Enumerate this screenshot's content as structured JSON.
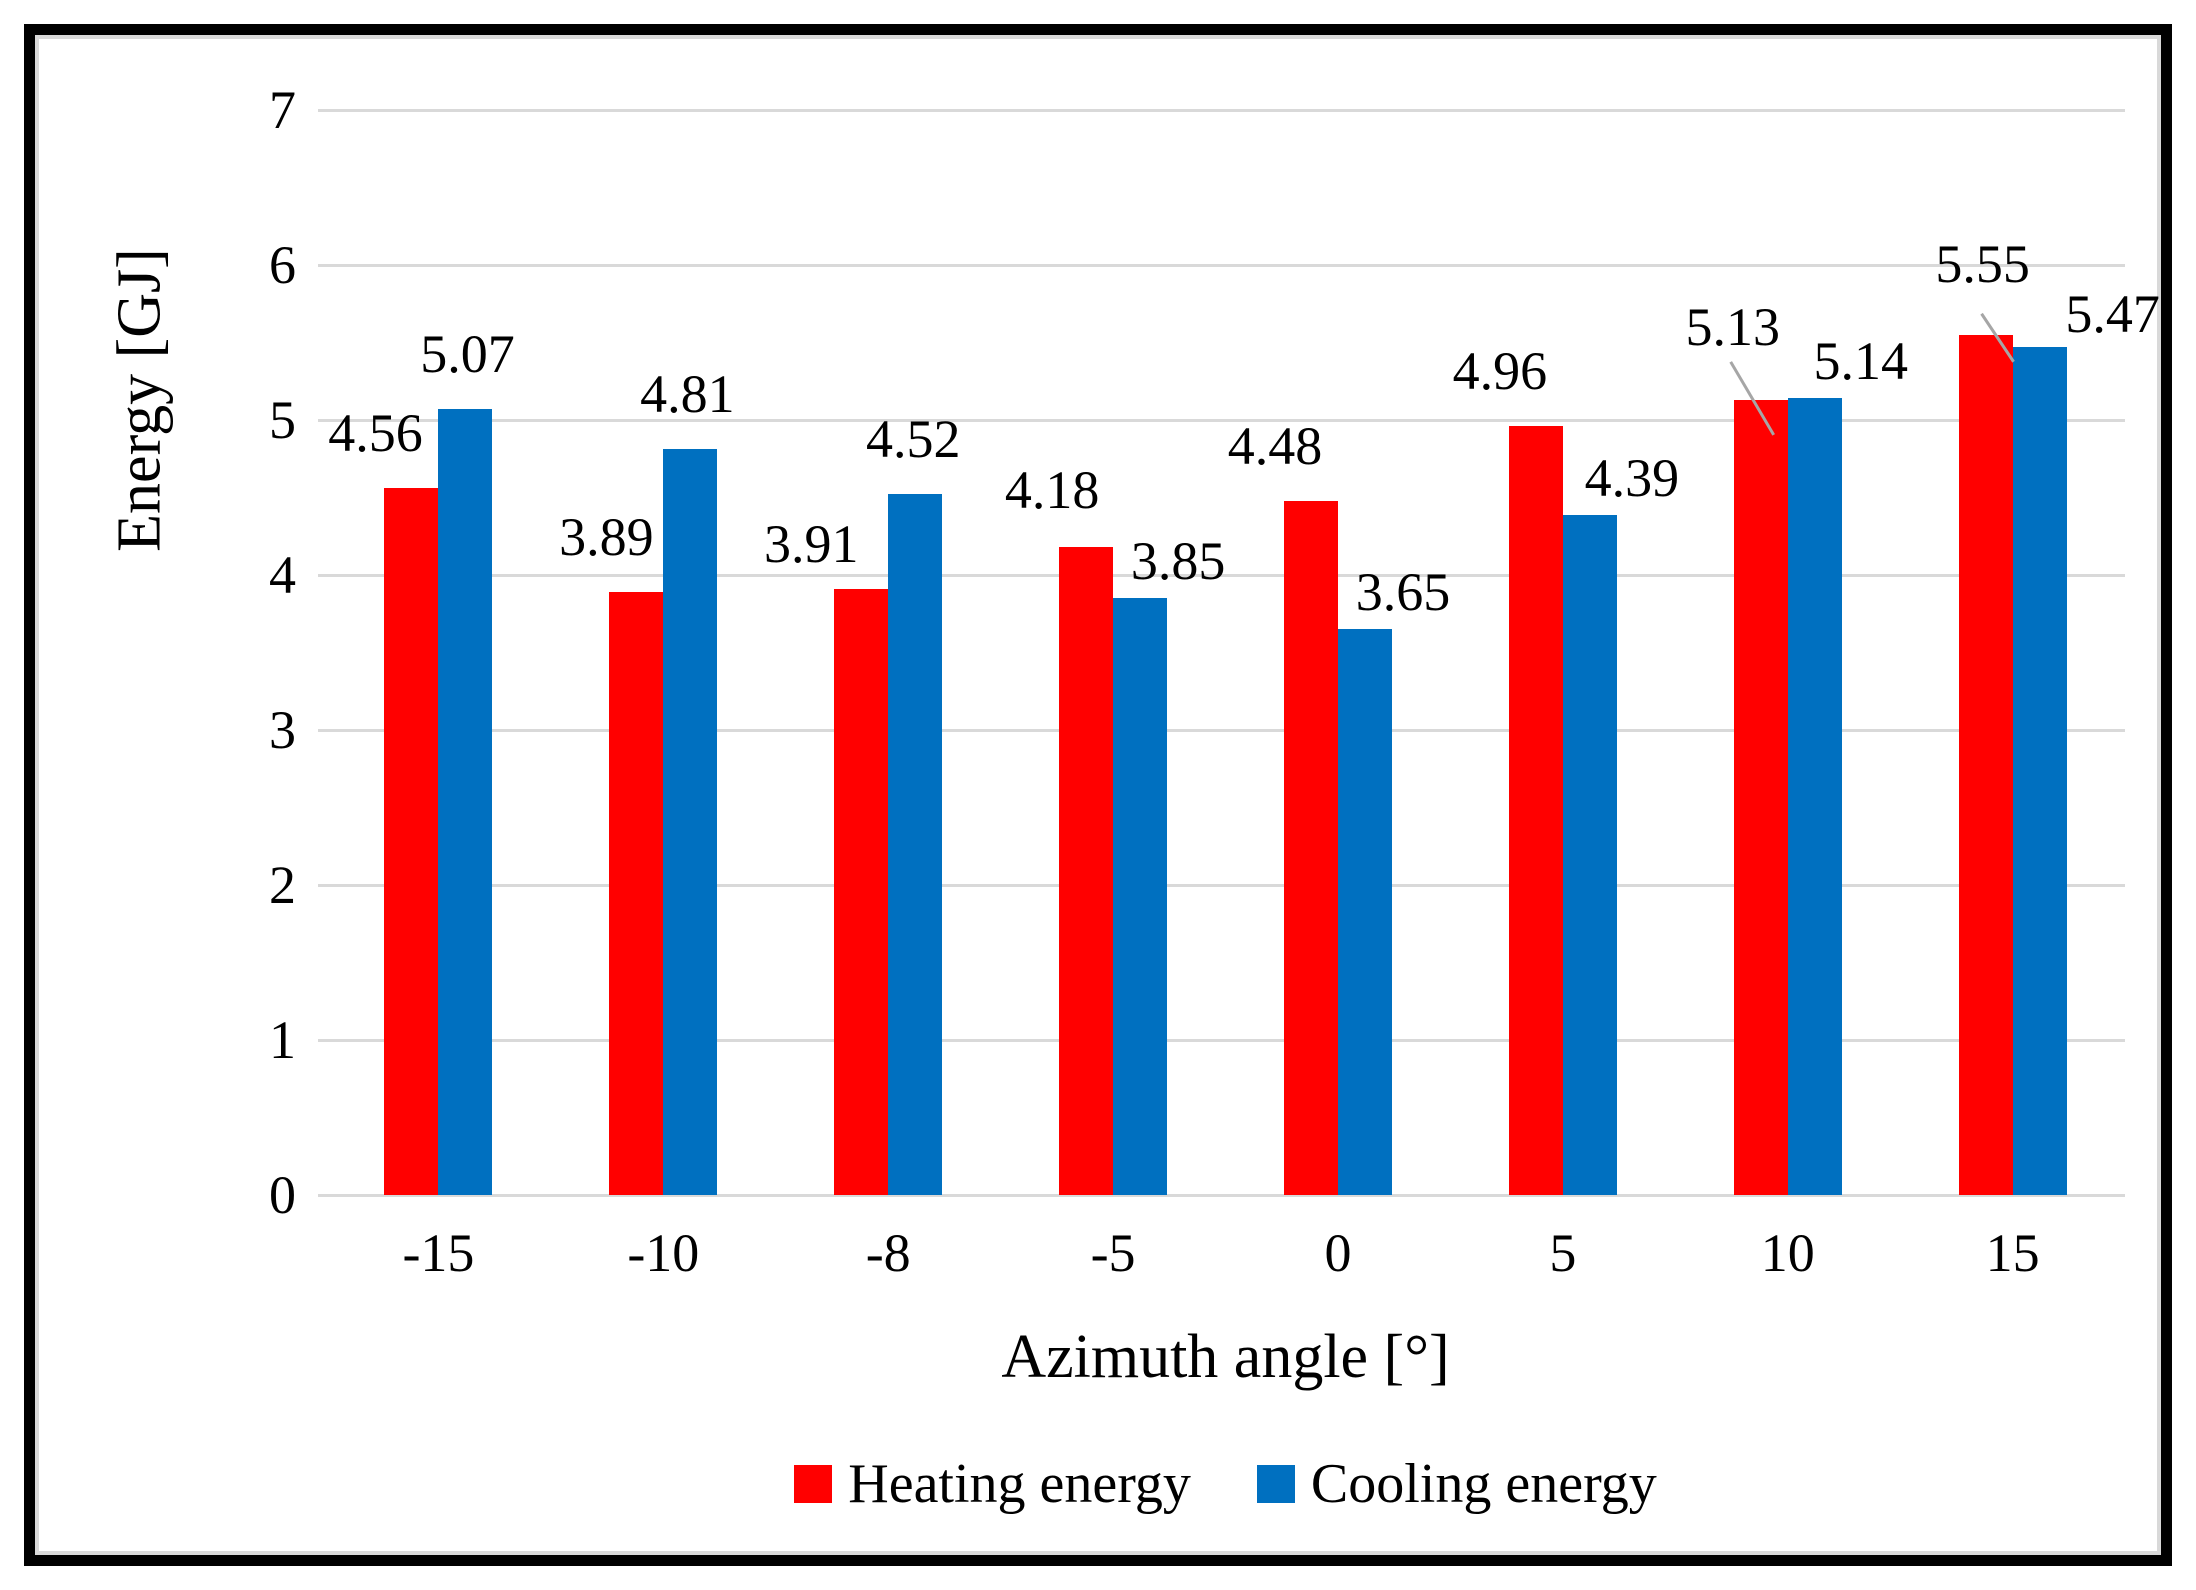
{
  "chart_data": {
    "type": "bar",
    "categories": [
      "-15",
      "-10",
      "-8",
      "-5",
      "0",
      "5",
      "10",
      "15"
    ],
    "series": [
      {
        "name": "Heating energy",
        "color": "#FF0000",
        "values": [
          4.56,
          3.89,
          3.91,
          4.18,
          4.48,
          4.96,
          5.13,
          5.55
        ]
      },
      {
        "name": "Cooling energy",
        "color": "#0070C0",
        "values": [
          5.07,
          4.81,
          4.52,
          3.85,
          3.65,
          4.39,
          5.14,
          5.47
        ]
      }
    ],
    "xlabel": "Azimuth angle [°]",
    "ylabel": "Energy [GJ]",
    "ylim": [
      0,
      7
    ],
    "yticks": [
      0,
      1,
      2,
      3,
      4,
      5,
      6,
      7
    ],
    "grid": true,
    "data_labels": true,
    "legend_position": "bottom",
    "gridline_color": "#D9D9D9",
    "leader_line_color": "#A6A6A6",
    "label_color": "#000000"
  }
}
